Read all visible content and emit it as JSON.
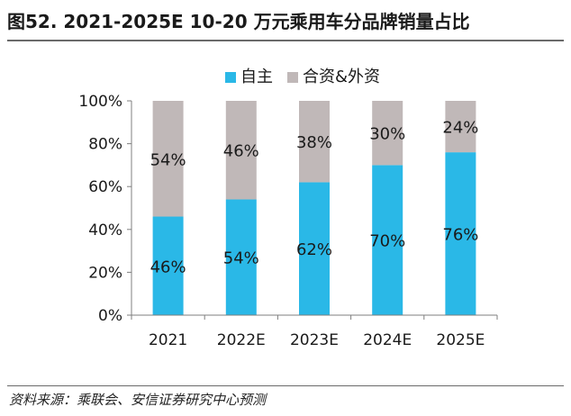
{
  "header": {
    "title": "图52. 2021-2025E 10-20 万元乘用车分品牌销量占比"
  },
  "footer": {
    "source": "资料来源：乘联会、安信证券研究中心预测"
  },
  "colors": {
    "domestic": "#2ab8e7",
    "jv": "#c0b8b8",
    "axis": "#7f7f7f",
    "text": "#1a1a1a"
  },
  "chart_data": {
    "type": "bar",
    "stacked": true,
    "title": "",
    "xlabel": "",
    "ylabel": "",
    "categories": [
      "2021",
      "2022E",
      "2023E",
      "2024E",
      "2025E"
    ],
    "series": [
      {
        "name": "自主",
        "values": [
          46,
          54,
          62,
          70,
          76
        ],
        "labels": [
          "46%",
          "54%",
          "62%",
          "70%",
          "76%"
        ]
      },
      {
        "name": "合资&外资",
        "values": [
          54,
          46,
          38,
          30,
          24
        ],
        "labels": [
          "54%",
          "46%",
          "38%",
          "30%",
          "24%"
        ]
      }
    ],
    "ylim": [
      0,
      100
    ],
    "yticks": [
      "0%",
      "20%",
      "40%",
      "60%",
      "80%",
      "100%"
    ],
    "legend_position": "top-center",
    "grid": false
  }
}
